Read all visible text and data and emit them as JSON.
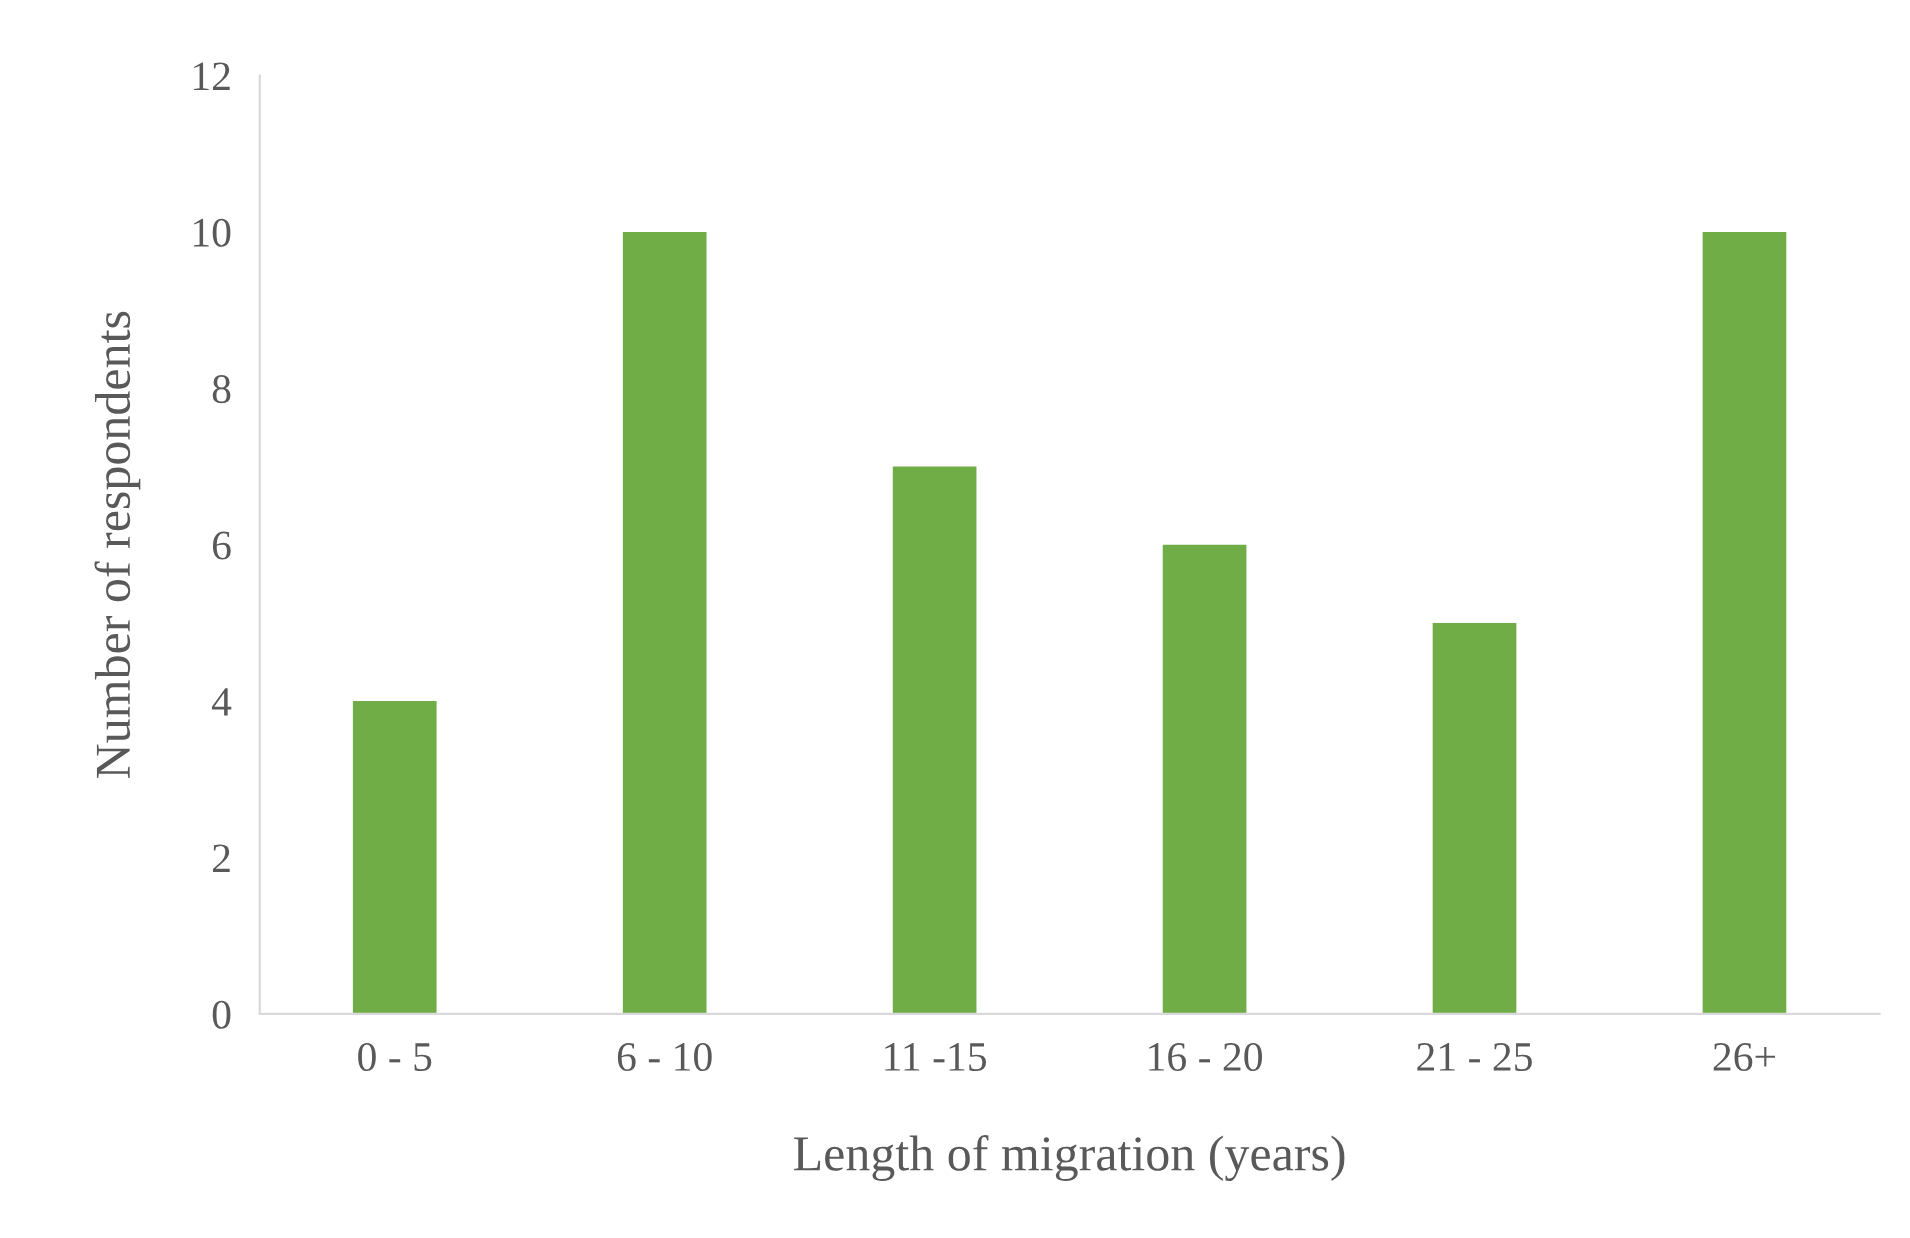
{
  "chart_data": {
    "type": "bar",
    "xlabel": "Length of migration (years)",
    "ylabel": "Number of respondents",
    "categories": [
      "0 - 5",
      "6 - 10",
      "11 -15",
      "16 - 20",
      "21 - 25",
      "26+"
    ],
    "values": [
      4,
      10,
      7,
      6,
      5,
      10
    ],
    "color": "#70ad47",
    "ylim": [
      0,
      12
    ],
    "yticks": [
      0,
      2,
      4,
      6,
      8,
      10,
      12
    ],
    "grid": false
  }
}
